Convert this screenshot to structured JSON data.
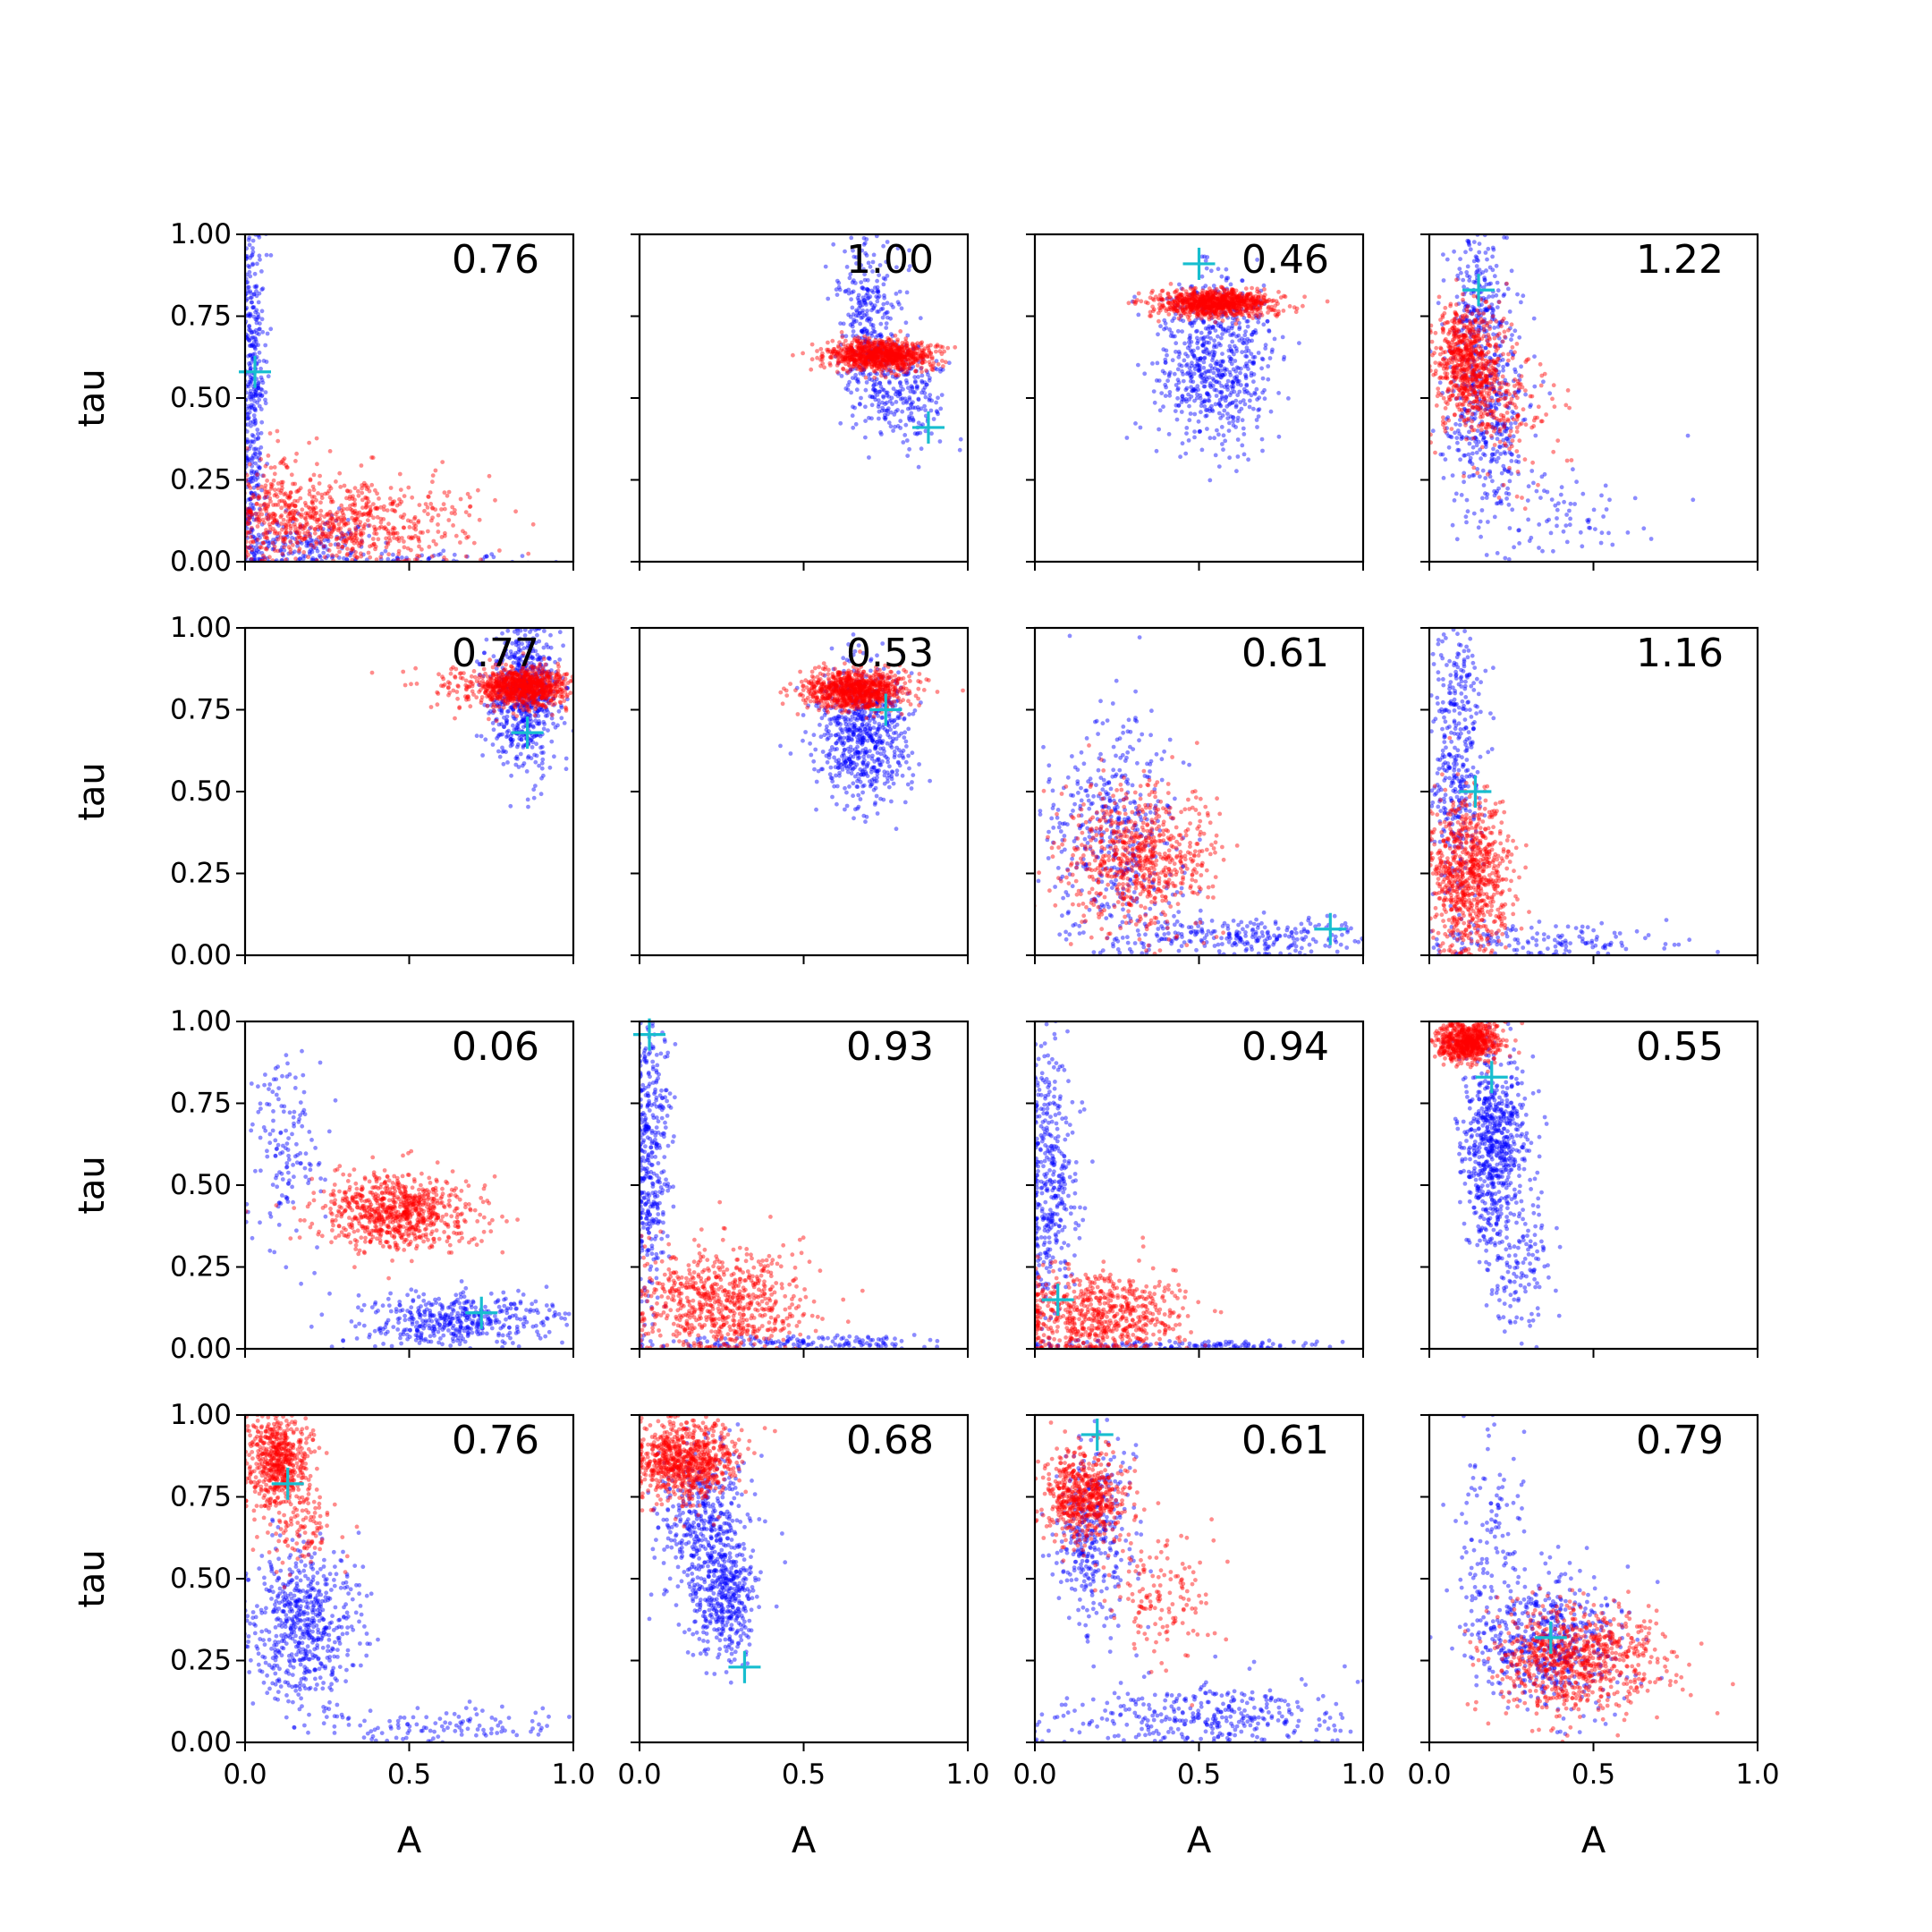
{
  "figure": {
    "rows": 4,
    "cols": 4
  },
  "chart_data": [
    {
      "type": "scatter",
      "panel": [
        0,
        0
      ],
      "label": "0.76",
      "marker": [
        0.03,
        0.58
      ],
      "xlim": [
        0,
        1
      ],
      "ylim": [
        0,
        1
      ],
      "xlabel": "",
      "ylabel": "tau",
      "series": [
        {
          "color": "#0000ff",
          "clusters": [
            [
              0.02,
              0.55,
              0.02,
              0.3,
              450
            ],
            [
              0.15,
              0.05,
              0.12,
              0.05,
              200
            ],
            [
              0.55,
              0.01,
              0.25,
              0.01,
              60
            ]
          ]
        },
        {
          "color": "#ff0000",
          "clusters": [
            [
              0.3,
              0.12,
              0.18,
              0.07,
              650
            ],
            [
              0.1,
              0.15,
              0.06,
              0.1,
              150
            ]
          ]
        }
      ]
    },
    {
      "type": "scatter",
      "panel": [
        0,
        1
      ],
      "label": "1.00",
      "marker": [
        0.88,
        0.41
      ],
      "xlim": [
        0,
        1
      ],
      "ylim": [
        0,
        1
      ],
      "xlabel": "",
      "ylabel": "",
      "series": [
        {
          "color": "#0000ff",
          "clusters": [
            [
              0.7,
              0.72,
              0.05,
              0.14,
              350
            ],
            [
              0.82,
              0.5,
              0.06,
              0.08,
              200
            ]
          ]
        },
        {
          "color": "#ff0000",
          "clusters": [
            [
              0.74,
              0.63,
              0.08,
              0.022,
              900
            ]
          ]
        }
      ]
    },
    {
      "type": "scatter",
      "panel": [
        0,
        2
      ],
      "label": "0.46",
      "marker": [
        0.5,
        0.91
      ],
      "xlim": [
        0,
        1
      ],
      "ylim": [
        0,
        1
      ],
      "xlabel": "",
      "ylabel": "",
      "series": [
        {
          "color": "#0000ff",
          "clusters": [
            [
              0.55,
              0.6,
              0.09,
              0.13,
              650
            ]
          ]
        },
        {
          "color": "#ff0000",
          "clusters": [
            [
              0.55,
              0.79,
              0.09,
              0.02,
              900
            ]
          ]
        }
      ]
    },
    {
      "type": "scatter",
      "panel": [
        0,
        3
      ],
      "label": "1.22",
      "marker": [
        0.15,
        0.83
      ],
      "xlim": [
        0,
        1
      ],
      "ylim": [
        0,
        1
      ],
      "xlabel": "",
      "ylabel": "",
      "series": [
        {
          "color": "#0000ff",
          "clusters": [
            [
              0.15,
              0.8,
              0.04,
              0.1,
              200
            ],
            [
              0.18,
              0.45,
              0.06,
              0.15,
              400
            ],
            [
              0.4,
              0.12,
              0.15,
              0.08,
              80
            ]
          ]
        },
        {
          "color": "#ff0000",
          "clusters": [
            [
              0.12,
              0.6,
              0.05,
              0.09,
              700
            ],
            [
              0.25,
              0.45,
              0.07,
              0.1,
              150
            ]
          ]
        }
      ]
    },
    {
      "type": "scatter",
      "panel": [
        1,
        0
      ],
      "label": "0.77",
      "marker": [
        0.86,
        0.68
      ],
      "xlim": [
        0,
        1
      ],
      "ylim": [
        0,
        1
      ],
      "xlabel": "",
      "ylabel": "tau",
      "series": [
        {
          "color": "#0000ff",
          "clusters": [
            [
              0.85,
              0.8,
              0.05,
              0.12,
              650
            ]
          ]
        },
        {
          "color": "#ff0000",
          "clusters": [
            [
              0.85,
              0.82,
              0.07,
              0.03,
              900
            ],
            [
              0.65,
              0.82,
              0.07,
              0.04,
              60
            ]
          ]
        }
      ]
    },
    {
      "type": "scatter",
      "panel": [
        1,
        1
      ],
      "label": "0.53",
      "marker": [
        0.75,
        0.75
      ],
      "xlim": [
        0,
        1
      ],
      "ylim": [
        0,
        1
      ],
      "xlabel": "",
      "ylabel": "",
      "series": [
        {
          "color": "#0000ff",
          "clusters": [
            [
              0.68,
              0.68,
              0.07,
              0.1,
              650
            ]
          ]
        },
        {
          "color": "#ff0000",
          "clusters": [
            [
              0.66,
              0.81,
              0.08,
              0.03,
              900
            ]
          ]
        }
      ]
    },
    {
      "type": "scatter",
      "panel": [
        1,
        2
      ],
      "label": "0.61",
      "marker": [
        0.9,
        0.08
      ],
      "xlim": [
        0,
        1
      ],
      "ylim": [
        0,
        1
      ],
      "xlabel": "",
      "ylabel": "",
      "series": [
        {
          "color": "#0000ff",
          "clusters": [
            [
              0.25,
              0.35,
              0.1,
              0.18,
              450
            ],
            [
              0.65,
              0.06,
              0.18,
              0.03,
              250
            ]
          ]
        },
        {
          "color": "#ff0000",
          "clusters": [
            [
              0.32,
              0.3,
              0.11,
              0.11,
              700
            ]
          ]
        }
      ]
    },
    {
      "type": "scatter",
      "panel": [
        1,
        3
      ],
      "label": "1.16",
      "marker": [
        0.14,
        0.5
      ],
      "xlim": [
        0,
        1
      ],
      "ylim": [
        0,
        1
      ],
      "xlabel": "",
      "ylabel": "",
      "series": [
        {
          "color": "#0000ff",
          "clusters": [
            [
              0.08,
              0.6,
              0.04,
              0.22,
              400
            ],
            [
              0.35,
              0.04,
              0.18,
              0.03,
              150
            ]
          ]
        },
        {
          "color": "#ff0000",
          "clusters": [
            [
              0.12,
              0.25,
              0.06,
              0.12,
              800
            ]
          ]
        }
      ]
    },
    {
      "type": "scatter",
      "panel": [
        2,
        0
      ],
      "label": "0.06",
      "marker": [
        0.72,
        0.11
      ],
      "xlim": [
        0,
        1
      ],
      "ylim": [
        0,
        1
      ],
      "xlabel": "",
      "ylabel": "tau",
      "series": [
        {
          "color": "#0000ff",
          "clusters": [
            [
              0.12,
              0.6,
              0.06,
              0.15,
              150
            ],
            [
              0.65,
              0.09,
              0.15,
              0.04,
              450
            ]
          ]
        },
        {
          "color": "#ff0000",
          "clusters": [
            [
              0.47,
              0.42,
              0.12,
              0.06,
              800
            ]
          ]
        }
      ]
    },
    {
      "type": "scatter",
      "panel": [
        2,
        1
      ],
      "label": "0.93",
      "marker": [
        0.03,
        0.96
      ],
      "xlim": [
        0,
        1
      ],
      "ylim": [
        0,
        1
      ],
      "xlabel": "",
      "ylabel": "",
      "series": [
        {
          "color": "#0000ff",
          "clusters": [
            [
              0.03,
              0.6,
              0.03,
              0.25,
              450
            ],
            [
              0.5,
              0.02,
              0.22,
              0.01,
              150
            ]
          ]
        },
        {
          "color": "#ff0000",
          "clusters": [
            [
              0.25,
              0.14,
              0.13,
              0.08,
              700
            ]
          ]
        }
      ]
    },
    {
      "type": "scatter",
      "panel": [
        2,
        2
      ],
      "label": "0.94",
      "marker": [
        0.07,
        0.15
      ],
      "xlim": [
        0,
        1
      ],
      "ylim": [
        0,
        1
      ],
      "xlabel": "",
      "ylabel": "",
      "series": [
        {
          "color": "#0000ff",
          "clusters": [
            [
              0.04,
              0.55,
              0.04,
              0.25,
              450
            ],
            [
              0.45,
              0.01,
              0.25,
              0.01,
              150
            ]
          ]
        },
        {
          "color": "#ff0000",
          "clusters": [
            [
              0.2,
              0.1,
              0.13,
              0.07,
              700
            ]
          ]
        }
      ]
    },
    {
      "type": "scatter",
      "panel": [
        2,
        3
      ],
      "label": "0.55",
      "marker": [
        0.19,
        0.83
      ],
      "xlim": [
        0,
        1
      ],
      "ylim": [
        0,
        1
      ],
      "xlabel": "",
      "ylabel": "",
      "series": [
        {
          "color": "#0000ff",
          "clusters": [
            [
              0.2,
              0.62,
              0.05,
              0.15,
              700
            ],
            [
              0.28,
              0.25,
              0.05,
              0.1,
              120
            ]
          ]
        },
        {
          "color": "#ff0000",
          "clusters": [
            [
              0.12,
              0.94,
              0.05,
              0.03,
              700
            ]
          ]
        }
      ]
    },
    {
      "type": "scatter",
      "panel": [
        3,
        0
      ],
      "label": "0.76",
      "marker": [
        0.13,
        0.79
      ],
      "xlim": [
        0,
        1
      ],
      "ylim": [
        0,
        1
      ],
      "xlabel": "A",
      "ylabel": "tau",
      "series": [
        {
          "color": "#0000ff",
          "clusters": [
            [
              0.18,
              0.35,
              0.08,
              0.12,
              600
            ],
            [
              0.6,
              0.05,
              0.2,
              0.03,
              120
            ]
          ]
        },
        {
          "color": "#ff0000",
          "clusters": [
            [
              0.1,
              0.85,
              0.05,
              0.07,
              600
            ],
            [
              0.18,
              0.65,
              0.05,
              0.06,
              100
            ]
          ]
        }
      ]
    },
    {
      "type": "scatter",
      "panel": [
        3,
        1
      ],
      "label": "0.68",
      "marker": [
        0.32,
        0.23
      ],
      "xlim": [
        0,
        1
      ],
      "ylim": [
        0,
        1
      ],
      "xlabel": "A",
      "ylabel": "",
      "series": [
        {
          "color": "#0000ff",
          "clusters": [
            [
              0.2,
              0.65,
              0.07,
              0.12,
              450
            ],
            [
              0.26,
              0.42,
              0.05,
              0.09,
              350
            ]
          ]
        },
        {
          "color": "#ff0000",
          "clusters": [
            [
              0.14,
              0.86,
              0.08,
              0.06,
              800
            ]
          ]
        }
      ]
    },
    {
      "type": "scatter",
      "panel": [
        3,
        2
      ],
      "label": "0.61",
      "marker": [
        0.19,
        0.94
      ],
      "xlim": [
        0,
        1
      ],
      "ylim": [
        0,
        1
      ],
      "xlabel": "A",
      "ylabel": "",
      "series": [
        {
          "color": "#0000ff",
          "clusters": [
            [
              0.18,
              0.62,
              0.06,
              0.14,
              350
            ],
            [
              0.55,
              0.08,
              0.22,
              0.05,
              350
            ]
          ]
        },
        {
          "color": "#ff0000",
          "clusters": [
            [
              0.15,
              0.75,
              0.06,
              0.07,
              600
            ],
            [
              0.38,
              0.45,
              0.09,
              0.1,
              150
            ]
          ]
        }
      ]
    },
    {
      "type": "scatter",
      "panel": [
        3,
        3
      ],
      "label": "0.79",
      "marker": [
        0.37,
        0.32
      ],
      "xlim": [
        0,
        1
      ],
      "ylim": [
        0,
        1
      ],
      "xlabel": "A",
      "ylabel": "",
      "series": [
        {
          "color": "#0000ff",
          "clusters": [
            [
              0.35,
              0.3,
              0.12,
              0.1,
              550
            ],
            [
              0.18,
              0.6,
              0.05,
              0.18,
              120
            ]
          ]
        },
        {
          "color": "#ff0000",
          "clusters": [
            [
              0.45,
              0.25,
              0.13,
              0.08,
              800
            ]
          ]
        }
      ]
    }
  ],
  "x_ticks": [
    "0.0",
    "0.5",
    "1.0"
  ],
  "x_tick_values": [
    0,
    0.5,
    1.0
  ],
  "y_ticks": [
    "0.00",
    "0.25",
    "0.50",
    "0.75",
    "1.00"
  ],
  "y_tick_values": [
    0,
    0.25,
    0.5,
    0.75,
    1.0
  ],
  "colors": {
    "series_a": "#0000ff",
    "series_b": "#ff0000",
    "marker": "#17becf"
  }
}
